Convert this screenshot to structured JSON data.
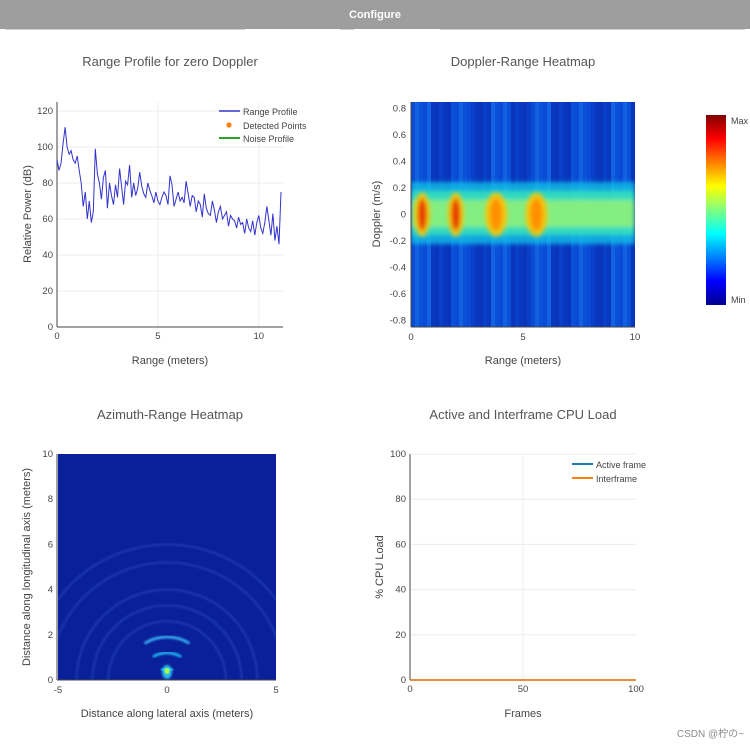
{
  "header": {
    "configure_label": "Configure"
  },
  "watermark": "CSDN @柠の~",
  "colors": {
    "topbar": "#9e9e9e",
    "profile": "#3333cc",
    "detected": "#ff7f0e",
    "noise": "#2ca02c",
    "active": "#1f77b4",
    "interframe": "#ff7f0e"
  },
  "chart_data": [
    {
      "type": "line",
      "id": "range-profile",
      "title": "Range Profile for zero Doppler",
      "xlabel": "Range (meters)",
      "ylabel": "Relative Power (dB)",
      "xlim": [
        0,
        11.2
      ],
      "ylim": [
        0,
        125
      ],
      "xticks": [
        0,
        5,
        10
      ],
      "yticks": [
        0,
        20,
        40,
        60,
        80,
        100,
        120
      ],
      "legend": [
        "Range Profile",
        "Detected Points",
        "Noise Profile"
      ],
      "series": [
        {
          "name": "Range Profile",
          "x": [
            0,
            0.1,
            0.2,
            0.3,
            0.4,
            0.5,
            0.6,
            0.7,
            0.8,
            0.9,
            1.0,
            1.1,
            1.2,
            1.3,
            1.4,
            1.5,
            1.6,
            1.7,
            1.8,
            1.9,
            2.0,
            2.1,
            2.2,
            2.3,
            2.4,
            2.5,
            2.6,
            2.7,
            2.8,
            2.9,
            3.0,
            3.1,
            3.2,
            3.3,
            3.4,
            3.5,
            3.6,
            3.7,
            3.8,
            3.9,
            4.0,
            4.1,
            4.2,
            4.3,
            4.4,
            4.5,
            4.6,
            4.7,
            4.8,
            4.9,
            5.0,
            5.1,
            5.2,
            5.3,
            5.4,
            5.5,
            5.6,
            5.7,
            5.8,
            5.9,
            6.0,
            6.1,
            6.2,
            6.3,
            6.4,
            6.5,
            6.6,
            6.7,
            6.8,
            6.9,
            7.0,
            7.1,
            7.2,
            7.3,
            7.4,
            7.5,
            7.6,
            7.7,
            7.8,
            7.9,
            8.0,
            8.1,
            8.2,
            8.3,
            8.4,
            8.5,
            8.6,
            8.7,
            8.8,
            8.9,
            9.0,
            9.1,
            9.2,
            9.3,
            9.4,
            9.5,
            9.6,
            9.7,
            9.8,
            9.9,
            10.0,
            10.1,
            10.2,
            10.3,
            10.4,
            10.5,
            10.6,
            10.7,
            10.8,
            10.9,
            11.0,
            11.1
          ],
          "y": [
            93,
            87,
            91,
            102,
            111,
            100,
            96,
            98,
            93,
            91,
            95,
            87,
            80,
            67,
            75,
            60,
            70,
            58,
            64,
            99,
            85,
            80,
            71,
            83,
            87,
            66,
            80,
            73,
            68,
            79,
            72,
            88,
            78,
            68,
            81,
            79,
            90,
            72,
            80,
            73,
            77,
            86,
            78,
            74,
            72,
            80,
            76,
            73,
            69,
            75,
            70,
            68,
            72,
            75,
            73,
            68,
            84,
            79,
            67,
            71,
            75,
            70,
            72,
            69,
            81,
            74,
            67,
            73,
            72,
            64,
            70,
            68,
            61,
            74,
            66,
            63,
            62,
            70,
            65,
            58,
            64,
            67,
            60,
            62,
            64,
            56,
            62,
            60,
            59,
            55,
            61,
            57,
            58,
            52,
            60,
            55,
            53,
            59,
            51,
            58,
            62,
            55,
            52,
            58,
            67,
            59,
            51,
            63,
            48,
            56,
            46,
            75
          ]
        }
      ]
    },
    {
      "type": "heatmap",
      "id": "doppler-range",
      "title": "Doppler-Range Heatmap",
      "xlabel": "Range (meters)",
      "ylabel": "Doppler (m/s)",
      "xlim": [
        0,
        10
      ],
      "ylim": [
        -0.85,
        0.85
      ],
      "xticks": [
        0,
        5,
        10
      ],
      "yticks": [
        -0.8,
        -0.6,
        -0.4,
        -0.2,
        0,
        0.2,
        0.4,
        0.6,
        0.8
      ],
      "colorbar": {
        "max_label": "Max",
        "min_label": "Min"
      },
      "hot_ranges_m": [
        0.5,
        2.0,
        3.8,
        5.6
      ]
    },
    {
      "type": "heatmap",
      "id": "azimuth-range",
      "title": "Azimuth-Range Heatmap",
      "xlabel": "Distance along lateral axis (meters)",
      "ylabel": "Distance along longitudinal axis (meters)",
      "xlim": [
        -5,
        5
      ],
      "ylim": [
        0,
        10
      ],
      "xticks": [
        -5,
        0,
        5
      ],
      "yticks": [
        0,
        2,
        4,
        6,
        8,
        10
      ],
      "arc_radii_m": [
        1.9,
        1.2,
        0.5
      ]
    },
    {
      "type": "line",
      "id": "cpu-load",
      "title": "Active and Interframe  CPU Load",
      "xlabel": "Frames",
      "ylabel": "% CPU Load",
      "xlim": [
        0,
        100
      ],
      "ylim": [
        0,
        100
      ],
      "xticks": [
        0,
        50,
        100
      ],
      "yticks": [
        0,
        20,
        40,
        60,
        80,
        100
      ],
      "legend": [
        "Active frame",
        "Interframe"
      ],
      "series": [
        {
          "name": "Active frame",
          "x": [
            0,
            100
          ],
          "y": [
            0,
            0
          ]
        },
        {
          "name": "Interframe",
          "x": [
            0,
            100
          ],
          "y": [
            0,
            0
          ]
        }
      ]
    }
  ]
}
